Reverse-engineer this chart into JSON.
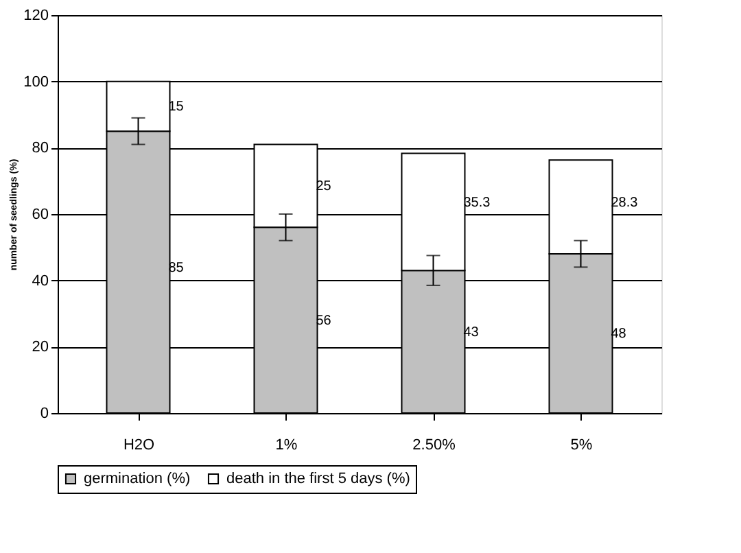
{
  "chart_data": {
    "type": "bar",
    "stacked": true,
    "ylabel": "number of seedlings (%)",
    "categories": [
      "H2O",
      "1%",
      "2.50%",
      "5%"
    ],
    "series": [
      {
        "name": "germination (%)",
        "color": "#c0c0c0",
        "values": [
          85,
          56,
          43,
          48
        ],
        "errors": [
          4,
          4,
          4.5,
          4
        ]
      },
      {
        "name": "death in the first 5 days (%)",
        "color": "#ffffff",
        "values": [
          15,
          25,
          35.3,
          28.3
        ]
      }
    ],
    "ylim": [
      0,
      120
    ],
    "yticks": [
      0,
      20,
      40,
      60,
      80,
      100,
      120
    ],
    "grid": "y",
    "legend": "bottom",
    "data_labels": true
  }
}
